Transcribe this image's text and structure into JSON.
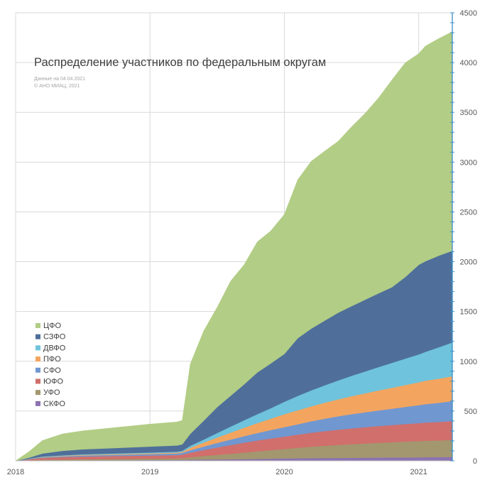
{
  "chart_data": {
    "type": "area",
    "stacked": true,
    "title": "Распределение участников по федеральным округам",
    "notes": [
      "Данные на 04.04.2021",
      "© АНО МИАЦ, 2021"
    ],
    "x_tick_labels": [
      "2018",
      "2019",
      "2020",
      "2021"
    ],
    "y_tick_labels": [
      "0",
      "500",
      "1000",
      "1500",
      "2000",
      "2500",
      "3000",
      "3500",
      "4000",
      "4500"
    ],
    "xlim": [
      2018.0,
      2021.25
    ],
    "ylim": [
      0,
      4500
    ],
    "y_axis_side": "right",
    "grid": true,
    "legend_position": "left",
    "x": [
      2018.0,
      2018.1,
      2018.2,
      2018.35,
      2018.5,
      2018.75,
      2019.0,
      2019.2,
      2019.24,
      2019.3,
      2019.4,
      2019.5,
      2019.6,
      2019.7,
      2019.8,
      2019.9,
      2020.0,
      2020.1,
      2020.2,
      2020.3,
      2020.4,
      2020.5,
      2020.6,
      2020.7,
      2020.8,
      2020.9,
      2021.0,
      2021.05,
      2021.15,
      2021.25
    ],
    "series": [
      {
        "name": "СКФО",
        "color": "#8c72b2",
        "values": [
          0,
          2,
          4,
          5,
          6,
          7,
          8,
          9,
          10,
          12,
          14,
          15,
          16,
          18,
          20,
          22,
          24,
          26,
          28,
          29,
          30,
          31,
          32,
          33,
          34,
          35,
          36,
          37,
          38,
          40
        ]
      },
      {
        "name": "УФО",
        "color": "#a3976f",
        "values": [
          0,
          3,
          6,
          8,
          10,
          12,
          14,
          16,
          18,
          25,
          35,
          45,
          55,
          65,
          75,
          85,
          95,
          105,
          115,
          123,
          130,
          137,
          143,
          149,
          154,
          159,
          163,
          165,
          167,
          170
        ]
      },
      {
        "name": "ЮФО",
        "color": "#d06f6b",
        "values": [
          0,
          10,
          20,
          25,
          28,
          30,
          32,
          33,
          35,
          45,
          60,
          75,
          88,
          100,
          110,
          118,
          125,
          132,
          140,
          147,
          153,
          158,
          163,
          168,
          172,
          176,
          180,
          183,
          186,
          190
        ]
      },
      {
        "name": "СФО",
        "color": "#7197d1",
        "values": [
          0,
          3,
          6,
          8,
          10,
          12,
          14,
          16,
          18,
          25,
          35,
          45,
          55,
          65,
          75,
          85,
          95,
          105,
          115,
          125,
          135,
          143,
          150,
          157,
          164,
          172,
          180,
          185,
          192,
          200
        ]
      },
      {
        "name": "ПФО",
        "color": "#f3a55f",
        "values": [
          0,
          2,
          4,
          5,
          6,
          7,
          8,
          9,
          10,
          25,
          40,
          55,
          70,
          85,
          100,
          115,
          130,
          140,
          150,
          160,
          170,
          180,
          190,
          200,
          210,
          220,
          230,
          235,
          243,
          250
        ]
      },
      {
        "name": "ДВФО",
        "color": "#6fc3dc",
        "values": [
          0,
          2,
          4,
          5,
          6,
          7,
          8,
          9,
          10,
          20,
          30,
          45,
          60,
          75,
          90,
          105,
          125,
          145,
          160,
          175,
          190,
          205,
          220,
          235,
          250,
          265,
          280,
          290,
          315,
          340
        ]
      },
      {
        "name": "СЗФО",
        "color": "#4f6f9a",
        "values": [
          0,
          10,
          30,
          45,
          50,
          55,
          60,
          63,
          65,
          120,
          190,
          260,
          310,
          360,
          420,
          450,
          480,
          580,
          620,
          650,
          680,
          700,
          720,
          740,
          760,
          820,
          900,
          910,
          920,
          920
        ]
      },
      {
        "name": "ЦФО",
        "color": "#b2cd85",
        "values": [
          0,
          60,
          130,
          170,
          185,
          205,
          225,
          235,
          240,
          700,
          900,
          1000,
          1150,
          1200,
          1310,
          1330,
          1400,
          1590,
          1680,
          1700,
          1720,
          1800,
          1870,
          1960,
          2080,
          2150,
          2120,
          2160,
          2180,
          2200
        ]
      }
    ],
    "legend_order": [
      "ЦФО",
      "СЗФО",
      "ДВФО",
      "ПФО",
      "СФО",
      "ЮФО",
      "УФО",
      "СКФО"
    ]
  }
}
